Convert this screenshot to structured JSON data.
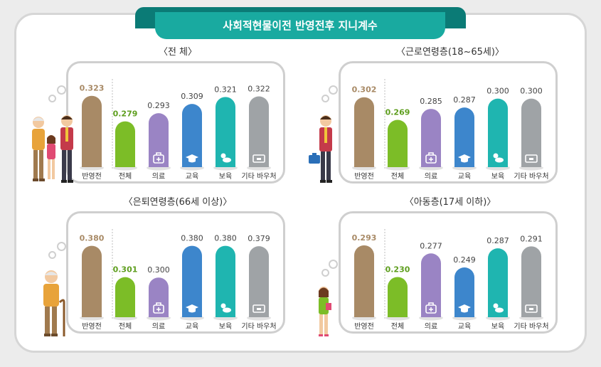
{
  "header": {
    "title": "사회적현물이전 반영전후 지니계수"
  },
  "colors": {
    "before": "#a88a66",
    "total": "#7cbd27",
    "medical": "#9a84c4",
    "education": "#3d86cc",
    "childcare": "#1fb5b0",
    "other": "#9fa3a6",
    "total_label": "#5e9e1e"
  },
  "icons": [
    "medical-kit-icon",
    "graduation-cap-icon",
    "baby-icon",
    "voucher-card-icon"
  ],
  "chart_data": [
    {
      "type": "bar",
      "title": "〈전 체〉",
      "categories": [
        "반영전",
        "전체",
        "의료",
        "교육",
        "보육",
        "기타 바우처"
      ],
      "values": [
        0.323,
        0.279,
        0.293,
        0.309,
        0.321,
        0.322
      ],
      "value_labels": [
        "0.323",
        "0.279",
        "0.293",
        "0.309",
        "0.321",
        "0.322"
      ],
      "ylim": [
        0.2,
        0.33
      ]
    },
    {
      "type": "bar",
      "title": "〈근로연령층(18~65세)〉",
      "categories": [
        "반영전",
        "전체",
        "의료",
        "교육",
        "보육",
        "기타 바우처"
      ],
      "values": [
        0.302,
        0.269,
        0.285,
        0.287,
        0.3,
        0.3
      ],
      "value_labels": [
        "0.302",
        "0.269",
        "0.285",
        "0.287",
        "0.300",
        "0.300"
      ],
      "ylim": [
        0.2,
        0.31
      ]
    },
    {
      "type": "bar",
      "title": "〈은퇴연령층(66세 이상)〉",
      "categories": [
        "반영전",
        "전체",
        "의료",
        "교육",
        "보육",
        "기타 바우처"
      ],
      "values": [
        0.38,
        0.301,
        0.3,
        0.38,
        0.38,
        0.379
      ],
      "value_labels": [
        "0.380",
        "0.301",
        "0.300",
        "0.380",
        "0.380",
        "0.379"
      ],
      "ylim": [
        0.2,
        0.39
      ]
    },
    {
      "type": "bar",
      "title": "〈아동층(17세 이하)〉",
      "categories": [
        "반영전",
        "전체",
        "의료",
        "교육",
        "보육",
        "기타 바우처"
      ],
      "values": [
        0.293,
        0.23,
        0.277,
        0.249,
        0.287,
        0.291
      ],
      "value_labels": [
        "0.293",
        "0.230",
        "0.277",
        "0.249",
        "0.287",
        "0.291"
      ],
      "ylim": [
        0.15,
        0.3
      ]
    }
  ]
}
